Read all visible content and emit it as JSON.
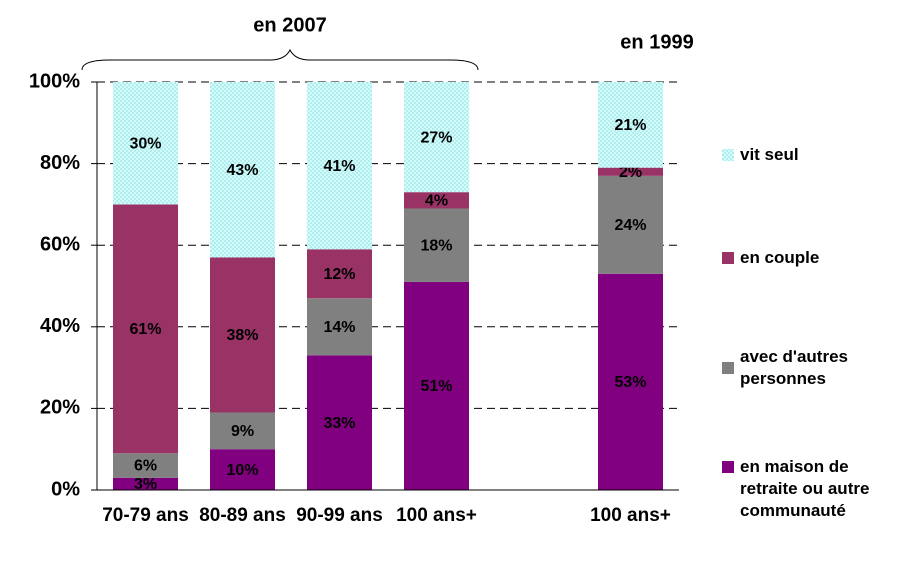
{
  "chart_data": {
    "type": "stacked_bar",
    "annotations": [
      "en 2007",
      "en 1999"
    ],
    "categories": [
      "70-79 ans",
      "80-89 ans",
      "90-99 ans",
      "100 ans+",
      null,
      "100 ans+"
    ],
    "series": [
      {
        "name": "en maison de retraite ou autre communauté",
        "color": "#800080",
        "values": [
          3,
          10,
          33,
          51,
          null,
          53
        ],
        "value_labels": [
          "3%",
          "10%",
          "33%",
          "51%",
          null,
          "53%"
        ]
      },
      {
        "name": "avec d'autres personnes",
        "color": "#808080",
        "values": [
          6,
          9,
          14,
          18,
          null,
          24
        ],
        "value_labels": [
          "6%",
          "9%",
          "14%",
          "18%",
          null,
          "24%"
        ]
      },
      {
        "name": "en couple",
        "color": "#993366",
        "values": [
          61,
          38,
          12,
          4,
          null,
          2
        ],
        "value_labels": [
          "61%",
          "38%",
          "12%",
          "4%",
          null,
          "2%"
        ]
      },
      {
        "name": "vit seul",
        "color": "#ccffff",
        "pattern": "dots",
        "values": [
          30,
          43,
          41,
          27,
          null,
          21
        ],
        "value_labels": [
          "30%",
          "43%",
          "41%",
          "27%",
          null,
          "21%"
        ]
      }
    ],
    "ylim": [
      0,
      100
    ],
    "yticks": [
      {
        "value": 0,
        "label": "0%"
      },
      {
        "value": 20,
        "label": "20%"
      },
      {
        "value": 40,
        "label": "40%"
      },
      {
        "value": 60,
        "label": "60%"
      },
      {
        "value": 80,
        "label": "80%"
      },
      {
        "value": 100,
        "label": "100%"
      }
    ],
    "grid": true,
    "legend": "right"
  }
}
